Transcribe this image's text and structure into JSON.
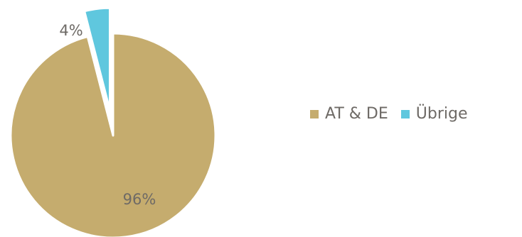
{
  "chart_data": {
    "type": "pie",
    "categories": [
      "AT & DE",
      "Übrige"
    ],
    "values": [
      96,
      4
    ],
    "labels": [
      "96%",
      "4%"
    ],
    "colors": [
      "#c5ac6e",
      "#5fc7de"
    ],
    "exploded": [
      false,
      true
    ],
    "legend_position": "right"
  }
}
